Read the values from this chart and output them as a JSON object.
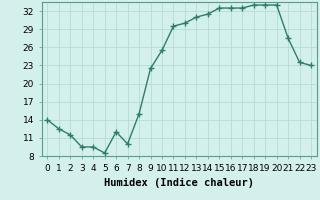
{
  "x": [
    0,
    1,
    2,
    3,
    4,
    5,
    6,
    7,
    8,
    9,
    10,
    11,
    12,
    13,
    14,
    15,
    16,
    17,
    18,
    19,
    20,
    21,
    22,
    23
  ],
  "y": [
    14,
    12.5,
    11.5,
    9.5,
    9.5,
    8.5,
    12,
    10,
    15,
    22.5,
    25.5,
    29.5,
    30,
    31,
    31.5,
    32.5,
    32.5,
    32.5,
    33,
    33,
    33,
    27.5,
    23.5,
    23
  ],
  "line_color": "#2d7d6e",
  "marker": "+",
  "marker_size": 4,
  "marker_linewidth": 1.0,
  "background_color": "#d4f0ec",
  "grid_color": "#b8dbd7",
  "xlabel": "Humidex (Indice chaleur)",
  "ylim": [
    8,
    33.5
  ],
  "xlim": [
    -0.5,
    23.5
  ],
  "yticks": [
    8,
    11,
    14,
    17,
    20,
    23,
    26,
    29,
    32
  ],
  "xticks": [
    0,
    1,
    2,
    3,
    4,
    5,
    6,
    7,
    8,
    9,
    10,
    11,
    12,
    13,
    14,
    15,
    16,
    17,
    18,
    19,
    20,
    21,
    22,
    23
  ],
  "xtick_labels": [
    "0",
    "1",
    "2",
    "3",
    "4",
    "5",
    "6",
    "7",
    "8",
    "9",
    "10",
    "11",
    "12",
    "13",
    "14",
    "15",
    "16",
    "17",
    "18",
    "19",
    "20",
    "21",
    "22",
    "23"
  ],
  "xlabel_fontsize": 7.5,
  "tick_fontsize": 6.5,
  "linewidth": 1.0
}
